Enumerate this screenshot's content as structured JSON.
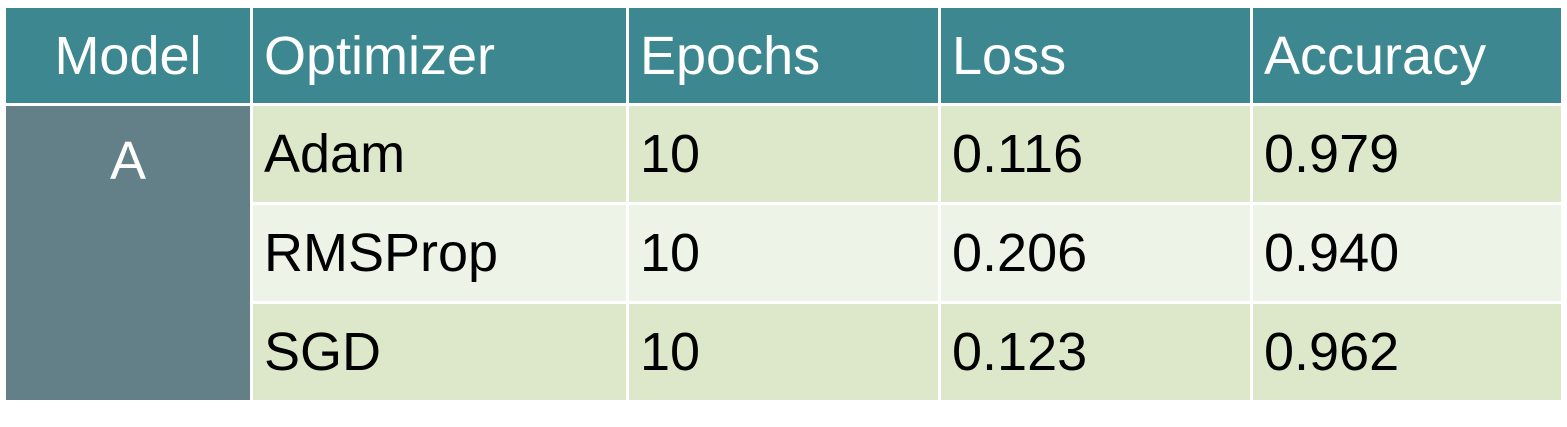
{
  "table": {
    "headers": {
      "model": "Model",
      "optimizer": "Optimizer",
      "epochs": "Epochs",
      "loss": "Loss",
      "accuracy": "Accuracy"
    },
    "model_label": "A",
    "rows": [
      {
        "optimizer": "Adam",
        "epochs": "10",
        "loss": "0.116",
        "accuracy": "0.979"
      },
      {
        "optimizer": "RMSProp",
        "epochs": "10",
        "loss": "0.206",
        "accuracy": "0.940"
      },
      {
        "optimizer": "SGD",
        "epochs": "10",
        "loss": "0.123",
        "accuracy": "0.962"
      }
    ]
  },
  "colors": {
    "header_bg": "#3d8890",
    "model_cell_bg": "#637f87",
    "row_band_dark": "#dde8cb",
    "row_band_light": "#eef3e7"
  }
}
